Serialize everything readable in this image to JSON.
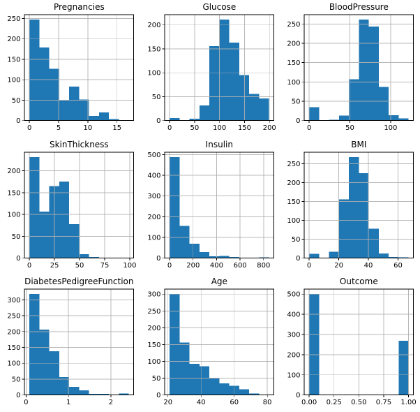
{
  "figure": {
    "background": "#ffffff",
    "bar_color": "#1f77b4",
    "grid_color": "#b0b0b0",
    "axis_color": "#000000",
    "text_color": "#000000"
  },
  "chart_data": [
    {
      "type": "bar",
      "subtype": "histogram",
      "title": "Pregnancies",
      "bins": {
        "start": 0,
        "end": 17,
        "count": 10
      },
      "values": [
        247,
        179,
        127,
        50,
        83,
        52,
        11,
        20,
        4,
        1
      ],
      "xticks": {
        "values": [
          0,
          5,
          10,
          15
        ],
        "labels": [
          "0",
          "5",
          "10",
          "15"
        ]
      },
      "yticks": {
        "values": [
          0,
          50,
          100,
          150,
          200,
          250
        ],
        "labels": [
          "0",
          "50",
          "100",
          "150",
          "200",
          "250"
        ]
      },
      "grid": true
    },
    {
      "type": "bar",
      "subtype": "histogram",
      "title": "Glucose",
      "bins": {
        "start": 0,
        "end": 199,
        "count": 10
      },
      "values": [
        5,
        0,
        4,
        32,
        156,
        211,
        163,
        95,
        56,
        46
      ],
      "xticks": {
        "values": [
          0,
          50,
          100,
          150,
          200
        ],
        "labels": [
          "0",
          "50",
          "100",
          "150",
          "200"
        ]
      },
      "yticks": {
        "values": [
          0,
          50,
          100,
          150,
          200
        ],
        "labels": [
          "0",
          "50",
          "100",
          "150",
          "200"
        ]
      },
      "grid": true
    },
    {
      "type": "bar",
      "subtype": "histogram",
      "title": "BloodPressure",
      "bins": {
        "start": 0,
        "end": 122,
        "count": 10
      },
      "values": [
        35,
        0,
        2,
        13,
        107,
        261,
        243,
        87,
        14,
        6
      ],
      "xticks": {
        "values": [
          0,
          50,
          100
        ],
        "labels": [
          "0",
          "50",
          "100"
        ]
      },
      "yticks": {
        "values": [
          0,
          50,
          100,
          150,
          200,
          250
        ],
        "labels": [
          "0",
          "50",
          "100",
          "150",
          "200",
          "250"
        ]
      },
      "grid": true
    },
    {
      "type": "bar",
      "subtype": "histogram",
      "title": "SkinThickness",
      "bins": {
        "start": 0,
        "end": 99,
        "count": 10
      },
      "values": [
        231,
        107,
        165,
        175,
        78,
        9,
        3,
        0,
        0,
        1
      ],
      "xticks": {
        "values": [
          0,
          25,
          50,
          75,
          100
        ],
        "labels": [
          "0",
          "25",
          "50",
          "75",
          "100"
        ]
      },
      "yticks": {
        "values": [
          0,
          50,
          100,
          150,
          200
        ],
        "labels": [
          "0",
          "50",
          "100",
          "150",
          "200"
        ]
      },
      "grid": true
    },
    {
      "type": "bar",
      "subtype": "histogram",
      "title": "Insulin",
      "bins": {
        "start": 0,
        "end": 846,
        "count": 10
      },
      "values": [
        487,
        155,
        70,
        30,
        9,
        10,
        5,
        3,
        3,
        4
      ],
      "xticks": {
        "values": [
          0,
          200,
          400,
          600,
          800
        ],
        "labels": [
          "0",
          "200",
          "400",
          "600",
          "800"
        ]
      },
      "yticks": {
        "values": [
          0,
          100,
          200,
          300,
          400,
          500
        ],
        "labels": [
          "0",
          "100",
          "200",
          "300",
          "400",
          "500"
        ]
      },
      "grid": true
    },
    {
      "type": "bar",
      "subtype": "histogram",
      "title": "BMI",
      "bins": {
        "start": 0,
        "end": 67.1,
        "count": 10
      },
      "values": [
        11,
        0,
        17,
        156,
        267,
        225,
        78,
        12,
        3,
        2
      ],
      "xticks": {
        "values": [
          0,
          20,
          40,
          60
        ],
        "labels": [
          "0",
          "20",
          "40",
          "60"
        ]
      },
      "yticks": {
        "values": [
          0,
          50,
          100,
          150,
          200,
          250
        ],
        "labels": [
          "0",
          "50",
          "100",
          "150",
          "200",
          "250"
        ]
      },
      "grid": true
    },
    {
      "type": "bar",
      "subtype": "histogram",
      "title": "DiabetesPedigreeFunction",
      "bins": {
        "start": 0.078,
        "end": 2.42,
        "count": 10
      },
      "values": [
        318,
        206,
        138,
        57,
        26,
        15,
        4,
        4,
        2,
        5
      ],
      "xticks": {
        "values": [
          0,
          1,
          2
        ],
        "labels": [
          "0",
          "1",
          "2"
        ]
      },
      "yticks": {
        "values": [
          0,
          50,
          100,
          150,
          200,
          250,
          300
        ],
        "labels": [
          "0",
          "50",
          "100",
          "150",
          "200",
          "250",
          "300"
        ]
      },
      "grid": true
    },
    {
      "type": "bar",
      "subtype": "histogram",
      "title": "Age",
      "bins": {
        "start": 21,
        "end": 81,
        "count": 10
      },
      "values": [
        300,
        156,
        93,
        86,
        50,
        35,
        27,
        17,
        4,
        1
      ],
      "xticks": {
        "values": [
          20,
          40,
          60,
          80
        ],
        "labels": [
          "20",
          "40",
          "60",
          "80"
        ]
      },
      "yticks": {
        "values": [
          0,
          50,
          100,
          150,
          200,
          250,
          300
        ],
        "labels": [
          "0",
          "50",
          "100",
          "150",
          "200",
          "250",
          "300"
        ]
      },
      "grid": true
    },
    {
      "type": "bar",
      "subtype": "histogram",
      "title": "Outcome",
      "bins": {
        "start": 0,
        "end": 1,
        "count": 10
      },
      "values": [
        500,
        0,
        0,
        0,
        0,
        0,
        0,
        0,
        0,
        268
      ],
      "xticks": {
        "values": [
          0,
          0.25,
          0.5,
          0.75,
          1
        ],
        "labels": [
          "0.00",
          "0.25",
          "0.50",
          "0.75",
          "1.00"
        ]
      },
      "yticks": {
        "values": [
          0,
          100,
          200,
          300,
          400,
          500
        ],
        "labels": [
          "0",
          "100",
          "200",
          "300",
          "400",
          "500"
        ]
      },
      "grid": true
    }
  ]
}
